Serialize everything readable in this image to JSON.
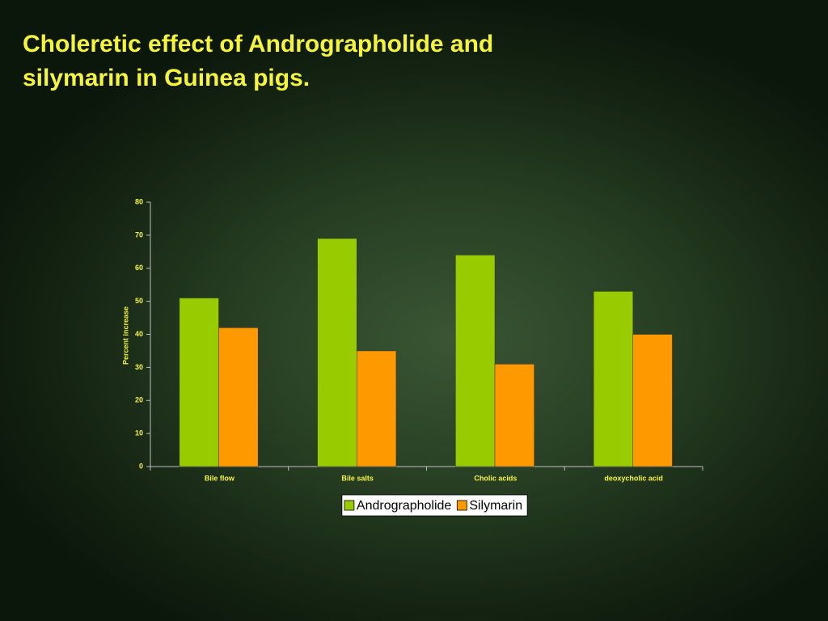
{
  "chart_data": {
    "type": "bar",
    "title": "Choleretic effect of Andrographolide and silymarin in Guinea pigs.",
    "y_label": "Percent increase",
    "categories": [
      "Bile flow",
      "Bile salts",
      "Cholic acids",
      "deoxycholic acid"
    ],
    "series": [
      {
        "name": "Andrographolide",
        "color": "#99cc00",
        "values": [
          51,
          69,
          64,
          53
        ]
      },
      {
        "name": "Silymarin",
        "color": "#ff9900",
        "values": [
          42,
          35,
          31,
          40
        ]
      }
    ],
    "ylim": [
      0,
      80
    ],
    "yticks": [
      0,
      10,
      20,
      30,
      40,
      50,
      60,
      70,
      80
    ],
    "grid": false,
    "legend": "bottom"
  }
}
